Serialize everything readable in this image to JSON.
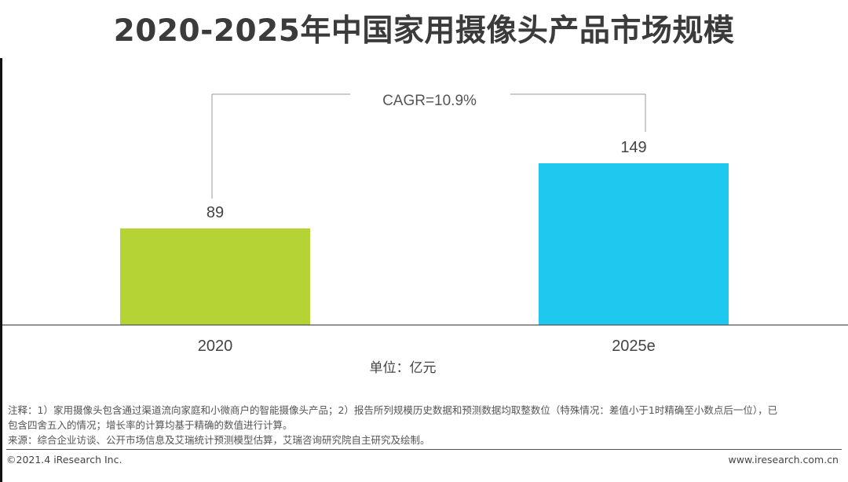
{
  "title": "2020-2025年中国家用摄像头产品市场规模",
  "cagr_label": "CAGR=10.9%",
  "unit_label": "单位：亿元",
  "chart_data": {
    "type": "bar",
    "title": "2020-2025年中国家用摄像头产品市场规模",
    "categories": [
      "2020",
      "2025e"
    ],
    "values": [
      89,
      149
    ],
    "colors": [
      "#b5d334",
      "#1ec8ef"
    ],
    "unit": "单位：亿元",
    "ylim": [
      0,
      160
    ],
    "annotation": "CAGR=10.9%",
    "grid": false,
    "legend": "none"
  },
  "notes": {
    "line1": "注释：1）家用摄像头包含通过渠道流向家庭和小微商户的智能摄像头产品；2）报告所列规模历史数据和预测数据均取整数位（特殊情况：差值小于1时精确至小数点后一位），已",
    "line2": "包含四舍五入的情况；增长率的计算均基于精确的数值进行计算。",
    "line3": "来源：综合企业访谈、公开市场信息及艾瑞统计预测模型估算，艾瑞咨询研究院自主研究及绘制。"
  },
  "footer": {
    "copyright": "©2021.4 iResearch Inc.",
    "website": "www.iresearch.com.cn"
  }
}
